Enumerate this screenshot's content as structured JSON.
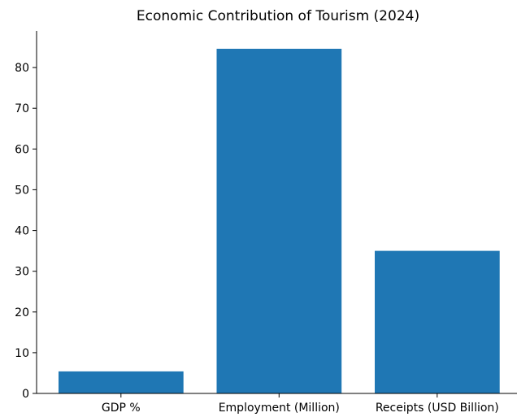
{
  "chart_data": {
    "type": "bar",
    "title": "Economic Contribution of Tourism (2024)",
    "categories": [
      "GDP %",
      "Employment (Million)",
      "Receipts (USD Billion)"
    ],
    "values": [
      5.4,
      84.6,
      35.0
    ],
    "xlabel": "",
    "ylabel": "",
    "ylim": [
      0,
      89
    ],
    "yticks": [
      0,
      10,
      20,
      30,
      40,
      50,
      60,
      70,
      80
    ],
    "grid": false,
    "bar_color": "#1f77b4"
  }
}
